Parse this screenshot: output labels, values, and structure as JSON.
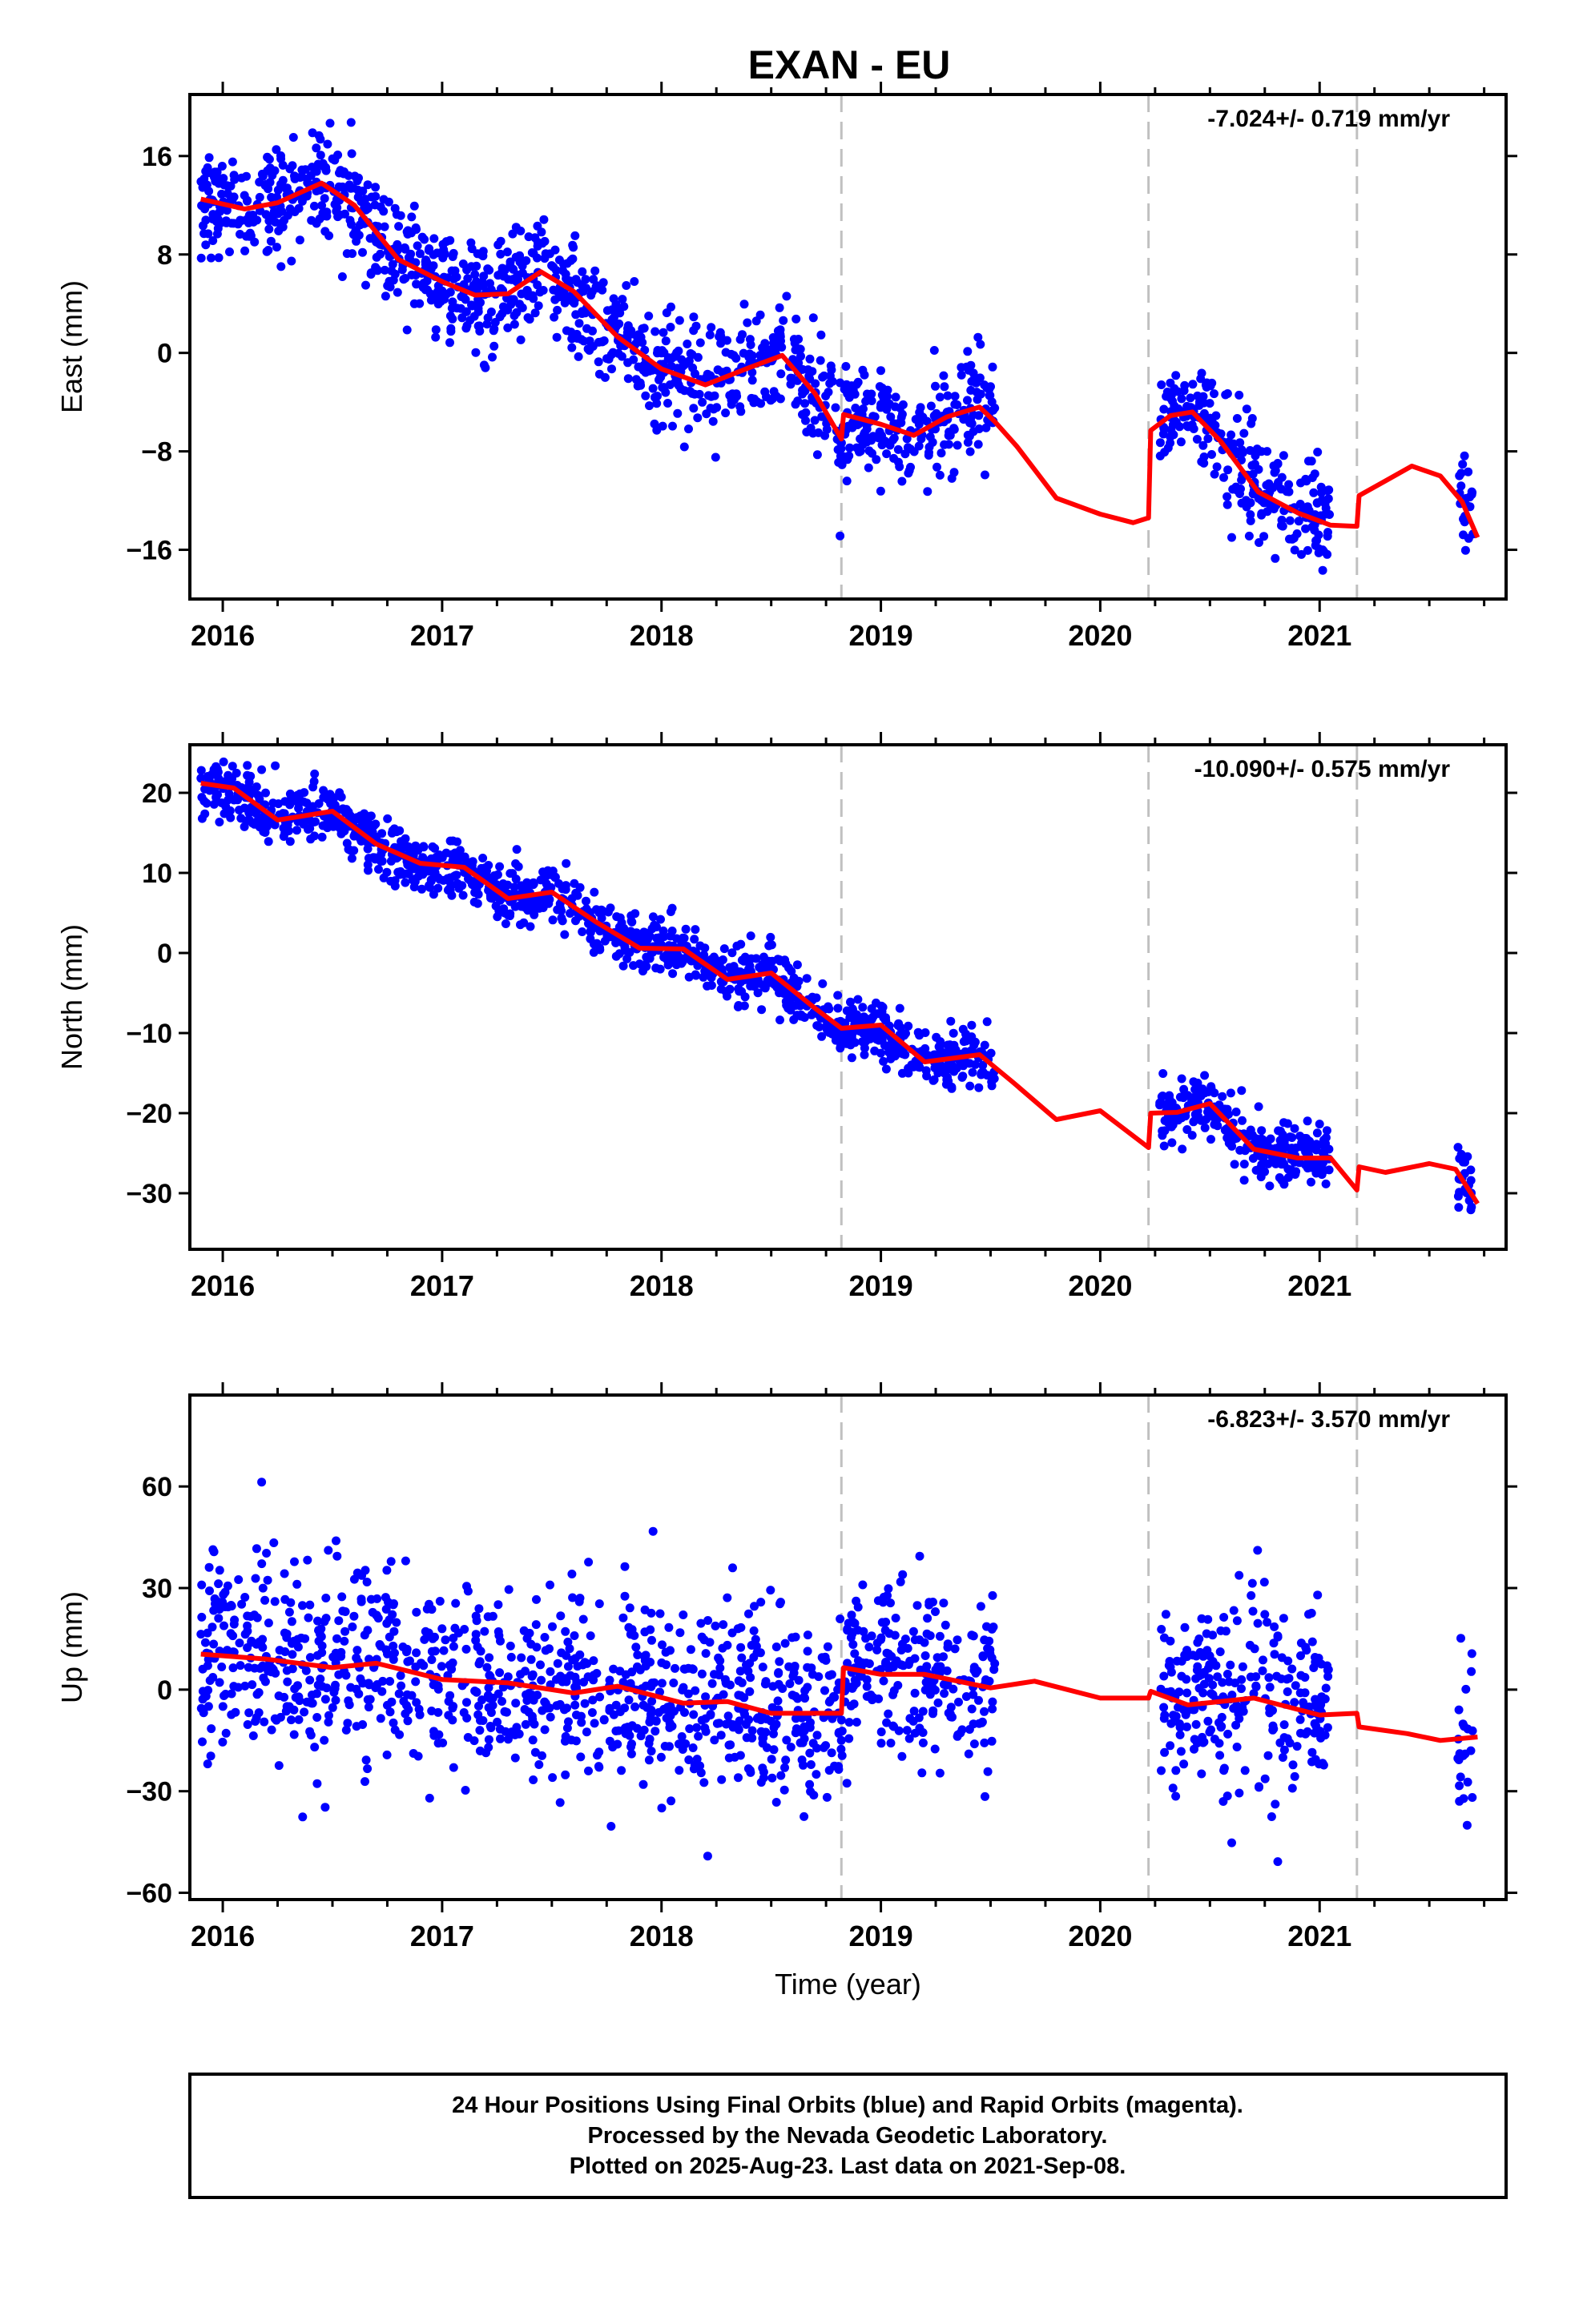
{
  "chart_data": [
    {
      "type": "scatter",
      "title": "EXAN - EU",
      "ylabel": "East (mm)",
      "xlabel": "",
      "xlim": [
        2015.85,
        2021.85
      ],
      "ylim": [
        -20,
        21
      ],
      "yticks": [
        -16,
        -8,
        0,
        8,
        16
      ],
      "xticks": [
        2016,
        2017,
        2018,
        2019,
        2020,
        2021
      ],
      "rate_label": "-7.024+/- 0.719 mm/yr",
      "breaks": [
        2018.82,
        2020.22,
        2021.17
      ],
      "grid": false,
      "series": [
        {
          "name": "24 hour positions",
          "color": "#0000ff",
          "kind": "points",
          "segments": [
            [
              2015.9,
              2018.82
            ],
            [
              2018.82,
              2019.52
            ],
            [
              2020.27,
              2021.05
            ],
            [
              2021.63,
              2021.7
            ]
          ],
          "scatter_sd": 2.2,
          "trend": [
            [
              2015.9,
              12.5
            ],
            [
              2016.1,
              11.7
            ],
            [
              2016.25,
              12.2
            ],
            [
              2016.45,
              13.8
            ],
            [
              2016.6,
              12.0
            ],
            [
              2016.8,
              7.6
            ],
            [
              2017.0,
              5.8
            ],
            [
              2017.15,
              4.7
            ],
            [
              2017.3,
              4.8
            ],
            [
              2017.45,
              6.6
            ],
            [
              2017.6,
              5.0
            ],
            [
              2017.8,
              1.3
            ],
            [
              2018.0,
              -1.3
            ],
            [
              2018.2,
              -2.6
            ],
            [
              2018.4,
              -1.2
            ],
            [
              2018.55,
              -0.2
            ],
            [
              2018.7,
              -3.3
            ],
            [
              2018.82,
              -7.0
            ],
            [
              2018.83,
              -5.0
            ],
            [
              2019.0,
              -5.8
            ],
            [
              2019.15,
              -6.7
            ],
            [
              2019.3,
              -5.2
            ],
            [
              2019.45,
              -4.4
            ],
            [
              2019.52,
              -5.6
            ],
            [
              2019.62,
              -7.6
            ],
            [
              2019.8,
              -11.8
            ],
            [
              2020.0,
              -13.1
            ],
            [
              2020.15,
              -13.8
            ],
            [
              2020.22,
              -13.4
            ],
            [
              2020.23,
              -6.3
            ],
            [
              2020.32,
              -5.1
            ],
            [
              2020.42,
              -4.8
            ],
            [
              2020.55,
              -7.2
            ],
            [
              2020.72,
              -11.3
            ],
            [
              2020.9,
              -13.0
            ],
            [
              2021.05,
              -14.0
            ],
            [
              2021.17,
              -14.1
            ],
            [
              2021.18,
              -11.6
            ],
            [
              2021.3,
              -10.4
            ],
            [
              2021.42,
              -9.2
            ],
            [
              2021.55,
              -10.0
            ],
            [
              2021.65,
              -12.1
            ],
            [
              2021.72,
              -15.0
            ]
          ]
        }
      ]
    },
    {
      "type": "scatter",
      "ylabel": "North (mm)",
      "xlabel": "",
      "xlim": [
        2015.85,
        2021.85
      ],
      "ylim": [
        -37,
        26
      ],
      "yticks": [
        -30,
        -20,
        -10,
        0,
        10,
        20
      ],
      "xticks": [
        2016,
        2017,
        2018,
        2019,
        2020,
        2021
      ],
      "rate_label": "-10.090+/- 0.575 mm/yr",
      "breaks": [
        2018.82,
        2020.22,
        2021.17
      ],
      "grid": false,
      "series": [
        {
          "name": "24 hour positions",
          "color": "#0000ff",
          "kind": "points",
          "segments": [
            [
              2015.9,
              2018.82
            ],
            [
              2018.82,
              2019.52
            ],
            [
              2020.27,
              2021.05
            ],
            [
              2021.63,
              2021.7
            ]
          ],
          "scatter_sd": 1.8,
          "trend": [
            [
              2015.9,
              21.2
            ],
            [
              2016.05,
              20.6
            ],
            [
              2016.25,
              16.6
            ],
            [
              2016.5,
              17.7
            ],
            [
              2016.7,
              13.6
            ],
            [
              2016.9,
              11.2
            ],
            [
              2017.1,
              10.7
            ],
            [
              2017.3,
              6.8
            ],
            [
              2017.5,
              7.6
            ],
            [
              2017.7,
              3.9
            ],
            [
              2017.9,
              0.6
            ],
            [
              2018.1,
              0.5
            ],
            [
              2018.3,
              -3.3
            ],
            [
              2018.5,
              -2.5
            ],
            [
              2018.7,
              -6.9
            ],
            [
              2018.82,
              -9.4
            ],
            [
              2019.0,
              -9.0
            ],
            [
              2019.2,
              -13.6
            ],
            [
              2019.45,
              -12.7
            ],
            [
              2019.6,
              -16.1
            ],
            [
              2019.8,
              -20.8
            ],
            [
              2020.0,
              -19.7
            ],
            [
              2020.22,
              -24.3
            ],
            [
              2020.23,
              -20.0
            ],
            [
              2020.35,
              -19.9
            ],
            [
              2020.5,
              -18.8
            ],
            [
              2020.7,
              -24.5
            ],
            [
              2020.9,
              -25.6
            ],
            [
              2021.05,
              -25.6
            ],
            [
              2021.17,
              -29.6
            ],
            [
              2021.18,
              -26.7
            ],
            [
              2021.3,
              -27.4
            ],
            [
              2021.5,
              -26.3
            ],
            [
              2021.62,
              -27.0
            ],
            [
              2021.72,
              -31.3
            ]
          ]
        }
      ]
    },
    {
      "type": "scatter",
      "ylabel": "Up (mm)",
      "xlabel": "Time (year)",
      "xlim": [
        2015.85,
        2021.85
      ],
      "ylim": [
        -62,
        87
      ],
      "yticks": [
        -60,
        -30,
        0,
        30,
        60
      ],
      "xticks": [
        2016,
        2017,
        2018,
        2019,
        2020,
        2021
      ],
      "rate_label": "-6.823+/- 3.570 mm/yr",
      "breaks": [
        2018.82,
        2020.22,
        2021.17
      ],
      "grid": false,
      "series": [
        {
          "name": "24 hour positions",
          "color": "#0000ff",
          "kind": "points",
          "segments": [
            [
              2015.9,
              2018.82
            ],
            [
              2018.82,
              2019.52
            ],
            [
              2020.27,
              2021.05
            ],
            [
              2021.63,
              2021.7
            ]
          ],
          "scatter_sd": 14,
          "trend": [
            [
              2015.9,
              10.5
            ],
            [
              2016.2,
              9.0
            ],
            [
              2016.5,
              6.5
            ],
            [
              2016.7,
              7.8
            ],
            [
              2017.0,
              3.0
            ],
            [
              2017.3,
              2.0
            ],
            [
              2017.6,
              -1.0
            ],
            [
              2017.8,
              1.0
            ],
            [
              2018.1,
              -4.0
            ],
            [
              2018.3,
              -3.5
            ],
            [
              2018.5,
              -7.0
            ],
            [
              2018.82,
              -7.0
            ],
            [
              2018.83,
              6.5
            ],
            [
              2019.0,
              4.5
            ],
            [
              2019.2,
              4.5
            ],
            [
              2019.5,
              0.5
            ],
            [
              2019.7,
              2.5
            ],
            [
              2020.0,
              -2.5
            ],
            [
              2020.22,
              -2.5
            ],
            [
              2020.23,
              -0.5
            ],
            [
              2020.4,
              -4.5
            ],
            [
              2020.7,
              -2.5
            ],
            [
              2021.0,
              -7.5
            ],
            [
              2021.17,
              -7.0
            ],
            [
              2021.18,
              -11.0
            ],
            [
              2021.4,
              -13.0
            ],
            [
              2021.55,
              -15.0
            ],
            [
              2021.72,
              -14.0
            ]
          ]
        }
      ]
    }
  ],
  "footer": {
    "line1": "24 Hour Positions Using Final Orbits (blue) and Rapid Orbits (magenta).",
    "line2": "Processed by the Nevada Geodetic Laboratory.",
    "line3": "Plotted on 2025-Aug-23. Last data on 2021-Sep-08."
  },
  "colors": {
    "data_points": "#0000ff",
    "trend_line": "#ff0000",
    "break_lines": "#c0c0c0"
  }
}
